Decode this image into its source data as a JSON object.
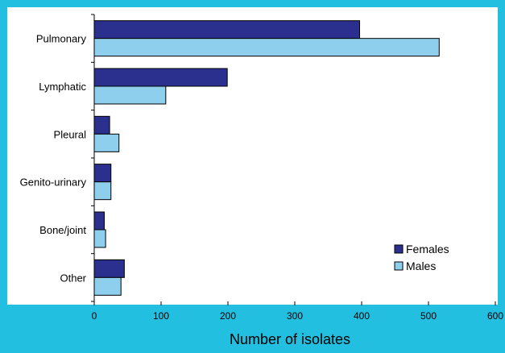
{
  "chart_data": {
    "type": "bar",
    "orientation": "horizontal",
    "categories": [
      "Pulmonary",
      "Lymphatic",
      "Pleural",
      "Genito-urinary",
      "Bone/joint",
      "Other"
    ],
    "series": [
      {
        "name": "Females",
        "values": [
          397,
          199,
          23,
          25,
          15,
          45
        ]
      },
      {
        "name": "Males",
        "values": [
          516,
          107,
          37,
          25,
          17,
          40
        ]
      }
    ],
    "title": "",
    "xlabel": "Number of isolates",
    "ylabel": "",
    "xlim": [
      0,
      600
    ],
    "xticks": [
      0,
      100,
      200,
      300,
      400,
      500,
      600
    ],
    "grid": false,
    "legend_position": "bottom-right"
  },
  "colors": {
    "Females": "#2b2f8e",
    "Males": "#8ecfee",
    "background": "#22bfe0",
    "plot": "#ffffff"
  }
}
